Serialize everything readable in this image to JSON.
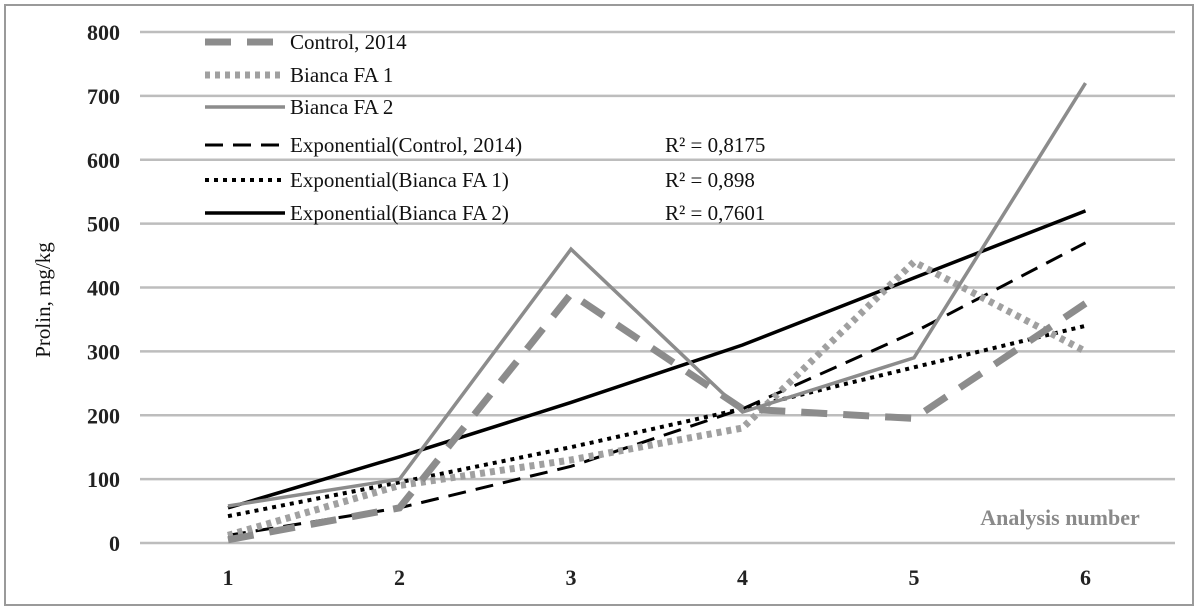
{
  "chart_data": {
    "type": "line",
    "ylabel": "Prolin,  mg/kg",
    "xlabel": "Analysis number",
    "x": [
      1,
      2,
      3,
      4,
      5,
      6
    ],
    "xticks": [
      "1",
      "2",
      "3",
      "4",
      "5",
      "6"
    ],
    "yticks": [
      "0",
      "100",
      "200",
      "300",
      "400",
      "500",
      "600",
      "700",
      "800"
    ],
    "ylim": [
      0,
      800
    ],
    "grid": true,
    "legend_position": "top-left",
    "series": [
      {
        "name": "Control, 2014",
        "values": [
          5,
          55,
          390,
          210,
          195,
          375
        ],
        "style": "dashed-thick",
        "color": "#8c8c8c"
      },
      {
        "name": "Bianca FA 1",
        "values": [
          12,
          90,
          130,
          180,
          440,
          300
        ],
        "style": "dotted-thick",
        "color": "#a0a0a0"
      },
      {
        "name": "Bianca FA 2",
        "values": [
          58,
          100,
          460,
          205,
          290,
          720
        ],
        "style": "solid-thick",
        "color": "#8c8c8c"
      },
      {
        "name": "Exponential(Control, 2014)",
        "values": [
          12,
          55,
          120,
          210,
          330,
          470
        ],
        "style": "dashed",
        "color": "#000000",
        "r2": "R² = 0,8175"
      },
      {
        "name": "Exponential(Bianca FA 1)",
        "values": [
          42,
          95,
          150,
          210,
          275,
          340
        ],
        "style": "dotted",
        "color": "#000000",
        "r2": "R² = 0,898"
      },
      {
        "name": "Exponential(Bianca FA 2)",
        "values": [
          55,
          135,
          220,
          310,
          415,
          520
        ],
        "style": "solid",
        "color": "#000000",
        "r2": "R² = 0,7601"
      }
    ]
  }
}
